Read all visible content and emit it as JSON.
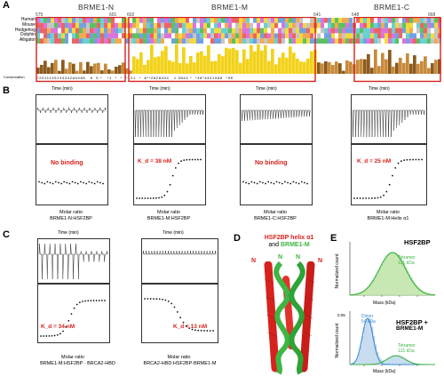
{
  "panels": {
    "A": {
      "label": "A",
      "domains": [
        "BRME1-N",
        "BRME1-M",
        "BRME1-C"
      ],
      "residue_numbers": [
        "575",
        "601",
        "602",
        "641",
        "648",
        "668"
      ],
      "species": [
        "Human",
        "Mouse",
        "Hedgehog",
        "Dolphin",
        "Alligator"
      ],
      "conservation_label": "Conservation",
      "conservation_digits": "*2011135134342a0488   6  5 *   *1  *  *  *  21  *  8**2828404   1 5844 *  *48*4441988  *98"
    },
    "B": {
      "label": "B",
      "plots": [
        {
          "top_title": "Time (min)",
          "kd_text": "No binding",
          "xlabel_line1": "Molar ratio",
          "xlabel_line2": "BRME1-N:HSF2BP"
        },
        {
          "top_title": "Time (min)",
          "kd_text": "K_d = 38 nM",
          "xlabel_line1": "Molar ratio",
          "xlabel_line2": "BRME1-M:HSF2BP"
        },
        {
          "top_title": "Time (min)",
          "kd_text": "No binding",
          "xlabel_line1": "Molar ratio",
          "xlabel_line2": "BRME1-C:HSF2BP"
        },
        {
          "top_title": "Time (min)",
          "kd_text": "K_d = 25 nM",
          "xlabel_line1": "Molar ratio",
          "xlabel_line2": "BRME1-M:Helix α1"
        }
      ]
    },
    "C": {
      "label": "C",
      "plots": [
        {
          "top_title": "Time (min)",
          "kd_text": "K_d = 34 nM",
          "xlabel_line1": "Molar ratio",
          "xlabel_line2": "BRME1-M:HSF2BP · BRCA2-HBD"
        },
        {
          "top_title": "Time (min)",
          "kd_text": "K_d = 13 nM",
          "xlabel_line1": "Molar ratio",
          "xlabel_line2": "BRCA2-HBD:HSF2BP-BRME1-M"
        }
      ]
    },
    "D": {
      "label": "D",
      "title_line1": "HSF2BP helix α1",
      "title_and": "and",
      "title_line2": "BRME1-M",
      "n_label": "N"
    },
    "E": {
      "label": "E",
      "top": {
        "title": "HSF2BP",
        "peak_label": "Tetramer",
        "peak_mass": "131 kDa",
        "ylabel": "Normalized count",
        "xlabel": "Mass (kDa)"
      },
      "bottom": {
        "title_line1": "HSF2BP +",
        "title_line2": "BRME1-M",
        "peak1_label": "Dimer",
        "peak1_mass": "54 kDa",
        "peak2_label": "Tetramer",
        "peak2_mass": "131 kDa",
        "ylabel": "Normalized count",
        "xlabel": "Mass (kDa)",
        "ytick": "0.05"
      }
    }
  },
  "colors": {
    "red": "#d6221d",
    "green": "#3fb644",
    "yellow": "#f2d21a",
    "brown": "#8b5a1e"
  }
}
